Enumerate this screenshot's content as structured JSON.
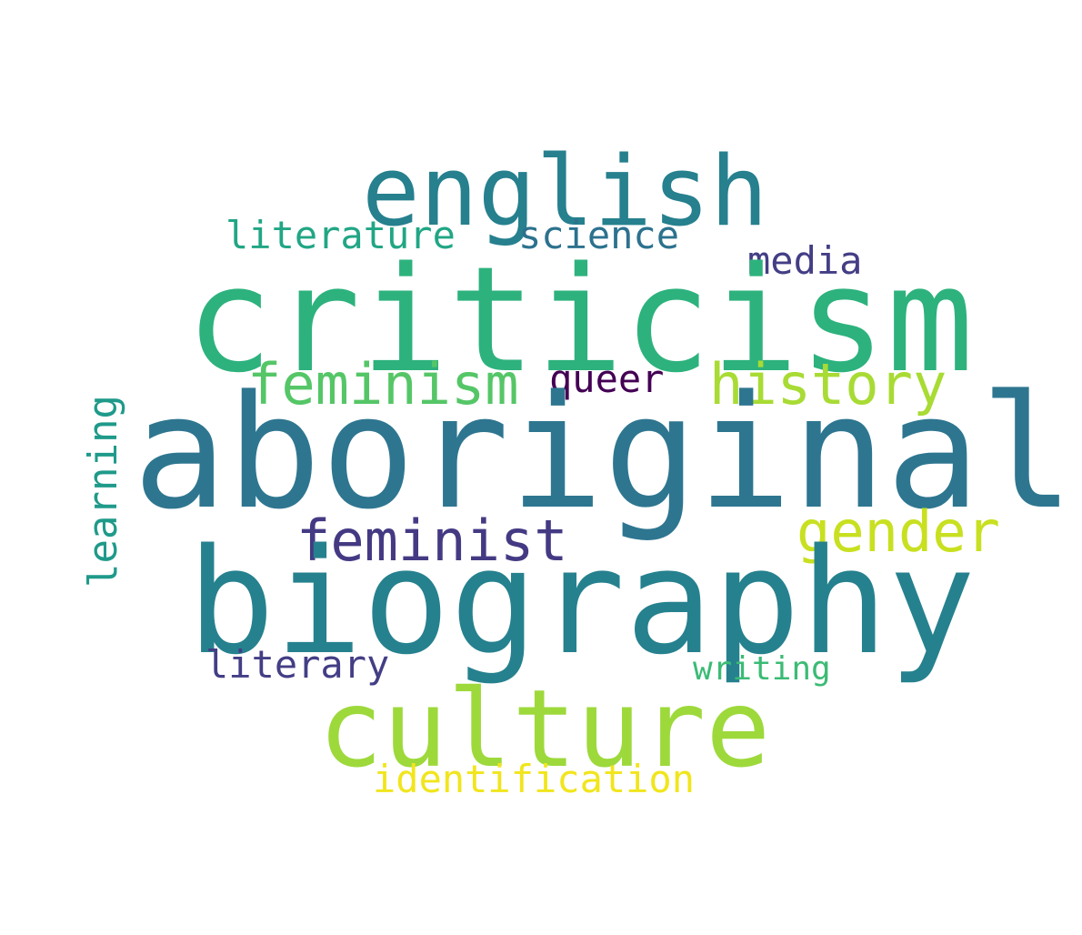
{
  "word_cloud": {
    "words": {
      "aboriginal": {
        "text": "aboriginal",
        "color": "#2e7690"
      },
      "biography": {
        "text": "biography",
        "color": "#26818e"
      },
      "criticism": {
        "text": "criticism",
        "color": "#2db27d"
      },
      "english": {
        "text": "english",
        "color": "#26808e"
      },
      "culture": {
        "text": "culture",
        "color": "#9dd93b"
      },
      "feminism": {
        "text": "feminism",
        "color": "#55c667"
      },
      "history": {
        "text": "history",
        "color": "#a8db34"
      },
      "feminist": {
        "text": "feminist",
        "color": "#443a83"
      },
      "gender": {
        "text": "gender",
        "color": "#c8e020"
      },
      "literature": {
        "text": "literature",
        "color": "#21a685"
      },
      "science": {
        "text": "science",
        "color": "#2c728e"
      },
      "media": {
        "text": "media",
        "color": "#433e85"
      },
      "queer": {
        "text": "queer",
        "color": "#440154"
      },
      "learning": {
        "text": "learning",
        "color": "#1f9a8a"
      },
      "literary": {
        "text": "literary",
        "color": "#433e85"
      },
      "writing": {
        "text": "writing",
        "color": "#3bbb75"
      },
      "identification": {
        "text": "identification",
        "color": "#f1e51d"
      }
    }
  }
}
